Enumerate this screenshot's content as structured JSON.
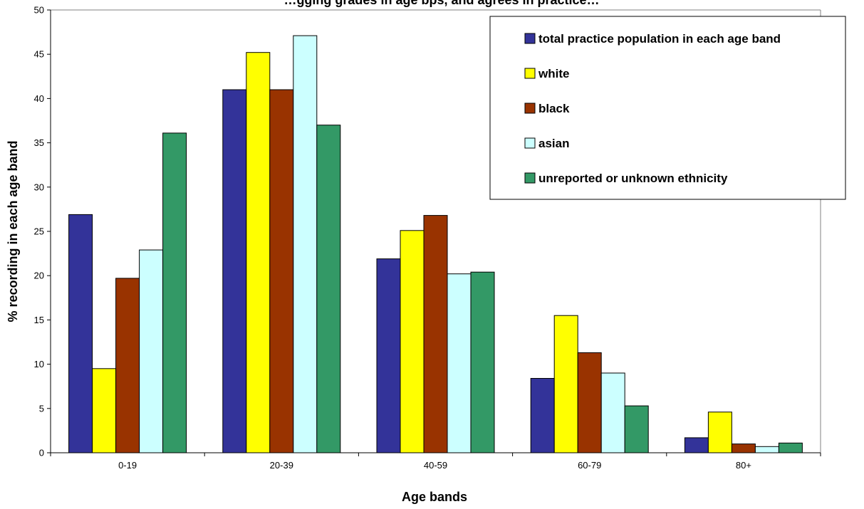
{
  "chart_data": {
    "type": "bar",
    "title": "…gging grades in age bps, and agrees in practice…",
    "xlabel": "Age bands",
    "ylabel": "% recording in each age band",
    "categories": [
      "0-19",
      "20-39",
      "40-59",
      "60-79",
      "80+"
    ],
    "ylim": [
      0,
      50
    ],
    "yticks": [
      "0",
      "5",
      "10",
      "15",
      "20",
      "25",
      "30",
      "35",
      "40",
      "45",
      "50"
    ],
    "legend_position": "top-right",
    "grid": false,
    "series": [
      {
        "name": "total practice population in each age band",
        "color": "#333399",
        "values": [
          26.9,
          41.0,
          21.9,
          8.4,
          1.7
        ]
      },
      {
        "name": "white",
        "color": "#FFFF00",
        "values": [
          9.5,
          45.2,
          25.1,
          15.5,
          4.6
        ]
      },
      {
        "name": "black",
        "color": "#993300",
        "values": [
          19.7,
          41.0,
          26.8,
          11.3,
          1.0
        ]
      },
      {
        "name": "asian",
        "color": "#CCFFFF",
        "values": [
          22.9,
          47.1,
          20.2,
          9.0,
          0.7
        ]
      },
      {
        "name": "unreported or unknown ethnicity",
        "color": "#339966",
        "values": [
          36.1,
          37.0,
          20.4,
          5.3,
          1.1
        ]
      }
    ]
  }
}
